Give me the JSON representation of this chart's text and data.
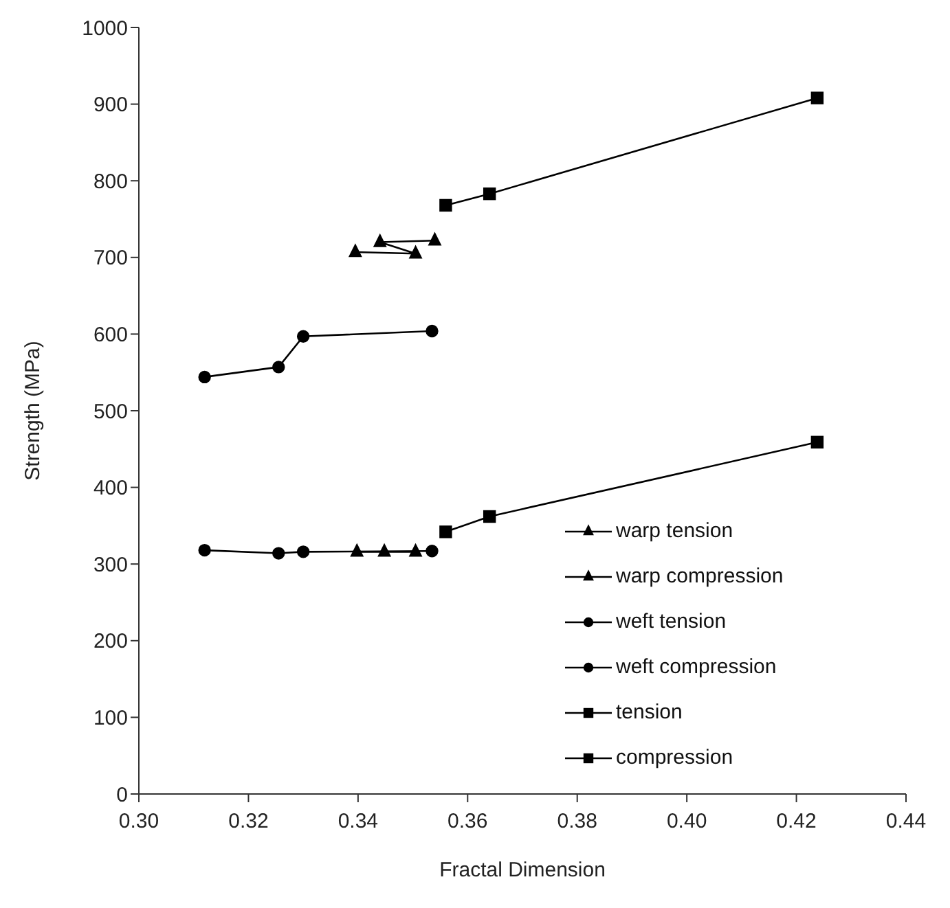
{
  "chart_data": {
    "type": "line",
    "xlabel": "Fractal Dimension",
    "ylabel": "Strength (MPa)",
    "xlim": [
      0.3,
      0.44
    ],
    "xticks": [
      {
        "value": 0.3,
        "label": "0.30"
      },
      {
        "value": 0.32,
        "label": "0.32"
      },
      {
        "value": 0.34,
        "label": "0.34"
      },
      {
        "value": 0.36,
        "label": "0.36"
      },
      {
        "value": 0.38,
        "label": "0.38"
      },
      {
        "value": 0.4,
        "label": "0.40"
      },
      {
        "value": 0.42,
        "label": "0.42"
      },
      {
        "value": 0.44,
        "label": "0.44"
      }
    ],
    "ylim": [
      0,
      1000
    ],
    "yticks": [
      0,
      100,
      200,
      300,
      400,
      500,
      600,
      700,
      800,
      900,
      1000
    ],
    "grid": false,
    "legend": "bottom right",
    "line_style": "solid",
    "series": [
      {
        "name": "warp tension",
        "color": "#000000",
        "marker": "triangle",
        "x": [
          0.3395,
          0.3505,
          0.344,
          0.354
        ],
        "values": [
          707,
          705,
          720,
          722
        ]
      },
      {
        "name": "warp compression",
        "color": "#000000",
        "marker": "triangle",
        "x": [
          0.3398,
          0.3448,
          0.3505
        ],
        "values": [
          316,
          316,
          316
        ]
      },
      {
        "name": "weft tension",
        "color": "#000000",
        "marker": "circle",
        "x": [
          0.312,
          0.3255,
          0.33,
          0.3535
        ],
        "values": [
          544,
          557,
          597,
          604
        ]
      },
      {
        "name": "weft compression",
        "color": "#000000",
        "marker": "circle",
        "x": [
          0.312,
          0.3255,
          0.33,
          0.3535
        ],
        "values": [
          318,
          314,
          316,
          317
        ]
      },
      {
        "name": "tension",
        "color": "#000000",
        "marker": "square",
        "x": [
          0.356,
          0.364,
          0.4238
        ],
        "values": [
          768,
          783,
          908
        ]
      },
      {
        "name": "compression",
        "color": "#000000",
        "marker": "square",
        "x": [
          0.356,
          0.364,
          0.4238
        ],
        "values": [
          342,
          362,
          459
        ]
      }
    ]
  }
}
